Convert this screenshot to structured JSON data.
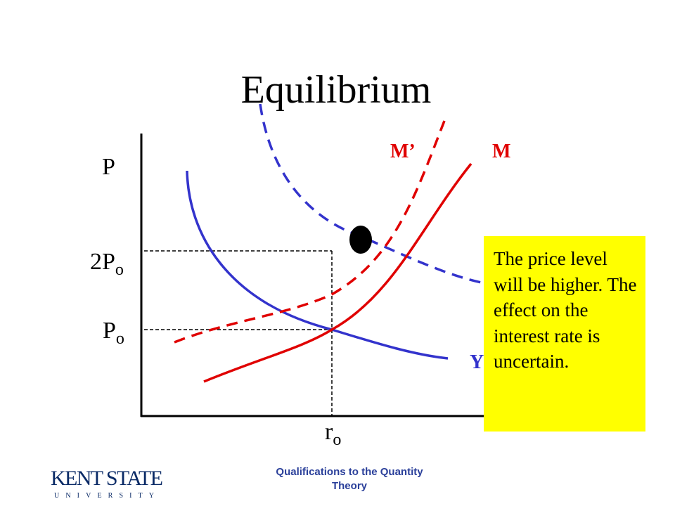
{
  "title": "Equilibrium",
  "axis": {
    "y_label": "P"
  },
  "levels": {
    "high": {
      "base": "2P",
      "sub": "o"
    },
    "low": {
      "base": "P",
      "sub": "o"
    },
    "rate": {
      "base": "r",
      "sub": "o"
    }
  },
  "curves": {
    "m_prime": "M’",
    "m": "M",
    "y": "Y"
  },
  "callout": "The price level will be higher.  The effect on the interest rate is uncertain.",
  "footer": {
    "line1": "Qualifications to the Quantity",
    "line2": "Theory"
  },
  "logo": {
    "name": "KENT STATE",
    "sub": "UNIVERSITY"
  }
}
